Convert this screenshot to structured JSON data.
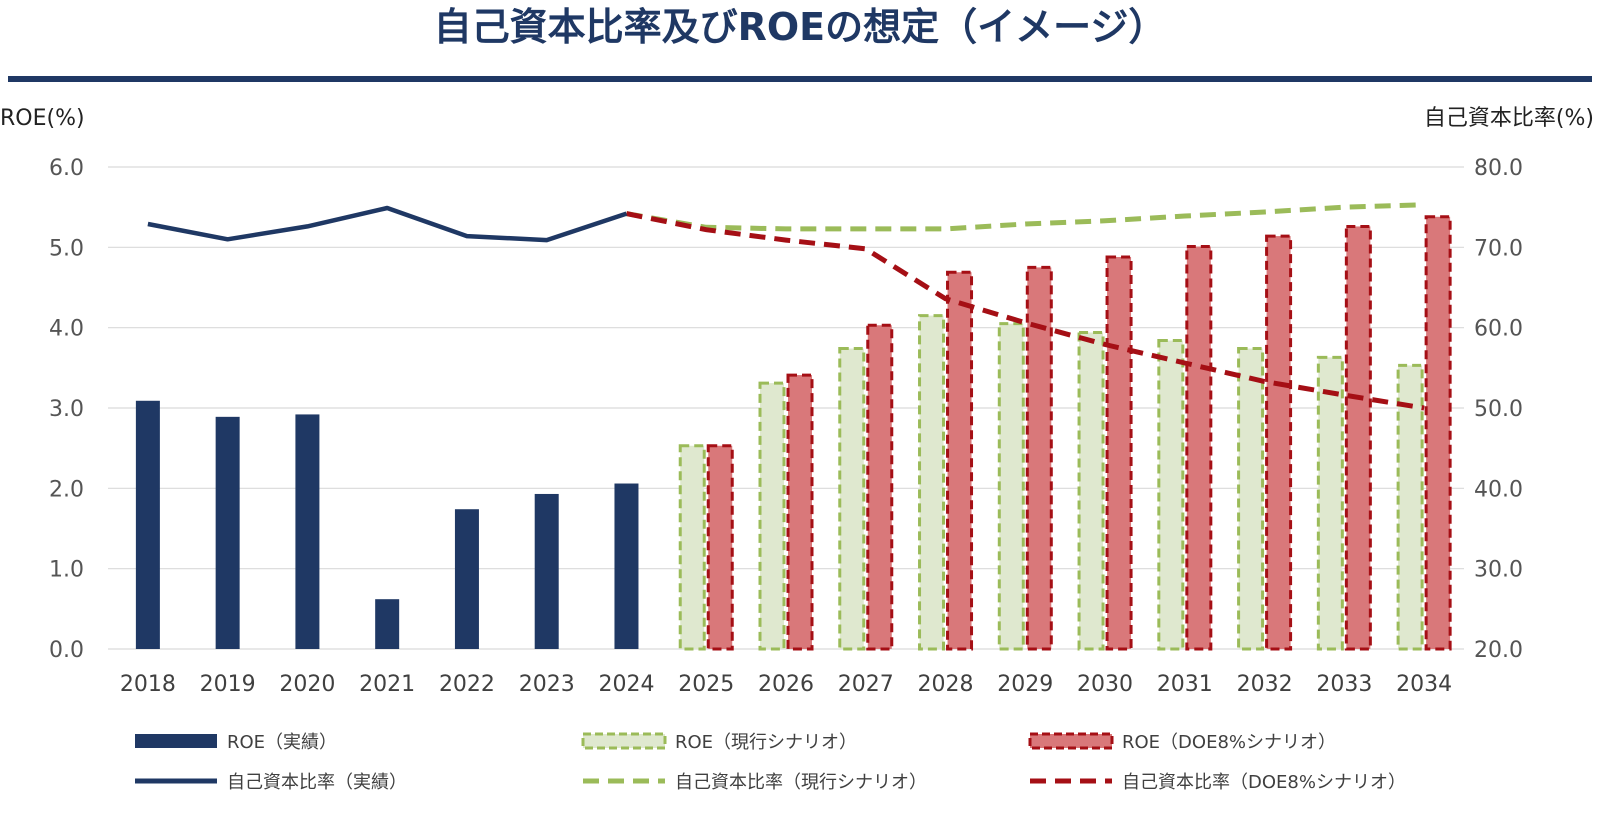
{
  "title": "自己資本比率及びROEの想定（イメージ）",
  "chart_data": {
    "type": "bar",
    "categories": [
      "2018",
      "2019",
      "2020",
      "2021",
      "2022",
      "2023",
      "2024",
      "2025",
      "2026",
      "2027",
      "2028",
      "2029",
      "2030",
      "2031",
      "2032",
      "2033",
      "2034"
    ],
    "y_left_label": "ROE(%)",
    "y_right_label": "自己資本比率(%)",
    "y_left_range": [
      0,
      6
    ],
    "y_right_range": [
      20,
      80
    ],
    "y_left_ticks": [
      "0.0",
      "1.0",
      "2.0",
      "3.0",
      "4.0",
      "5.0",
      "6.0"
    ],
    "y_right_ticks": [
      "20.0",
      "30.0",
      "40.0",
      "50.0",
      "60.0",
      "70.0",
      "80.0"
    ],
    "grid": true,
    "legend_position": "bottom",
    "colors": {
      "navy": "#1f3864",
      "green_fill": "#dfe8cf",
      "green_line": "#9bbb59",
      "red_fill": "#d9787a",
      "red_line": "#a50f15"
    },
    "series": [
      {
        "name": "ROE（実績）",
        "kind": "bar",
        "axis": "left",
        "values": [
          3.09,
          2.89,
          2.92,
          0.62,
          1.74,
          1.93,
          2.06,
          null,
          null,
          null,
          null,
          null,
          null,
          null,
          null,
          null,
          null
        ]
      },
      {
        "name": "ROE（現行シナリオ）",
        "kind": "bar",
        "axis": "left",
        "values": [
          null,
          null,
          null,
          null,
          null,
          null,
          null,
          2.53,
          3.31,
          3.74,
          4.15,
          4.05,
          3.94,
          3.84,
          3.74,
          3.63,
          3.53
        ]
      },
      {
        "name": "ROE（DOE8%シナリオ）",
        "kind": "bar",
        "axis": "left",
        "values": [
          null,
          null,
          null,
          null,
          null,
          null,
          null,
          2.53,
          3.41,
          4.03,
          4.69,
          4.75,
          4.88,
          5.01,
          5.14,
          5.26,
          5.38
        ]
      },
      {
        "name": "自己資本比率（実績）",
        "kind": "line",
        "axis": "right",
        "values": [
          72.9,
          71.0,
          72.6,
          74.9,
          71.4,
          70.9,
          74.2,
          null,
          null,
          null,
          null,
          null,
          null,
          null,
          null,
          null,
          null
        ]
      },
      {
        "name": "自己資本比率（現行シナリオ）",
        "kind": "line",
        "axis": "right",
        "values": [
          null,
          null,
          null,
          null,
          null,
          null,
          74.2,
          72.5,
          72.3,
          72.3,
          72.3,
          72.9,
          73.3,
          73.9,
          74.4,
          75.0,
          75.3
        ]
      },
      {
        "name": "自己資本比率（DOE8%シナリオ）",
        "kind": "line",
        "axis": "right",
        "values": [
          null,
          null,
          null,
          null,
          null,
          null,
          74.2,
          72.2,
          70.9,
          69.8,
          63.6,
          60.6,
          57.9,
          55.6,
          53.3,
          51.6,
          50.0
        ]
      }
    ]
  }
}
